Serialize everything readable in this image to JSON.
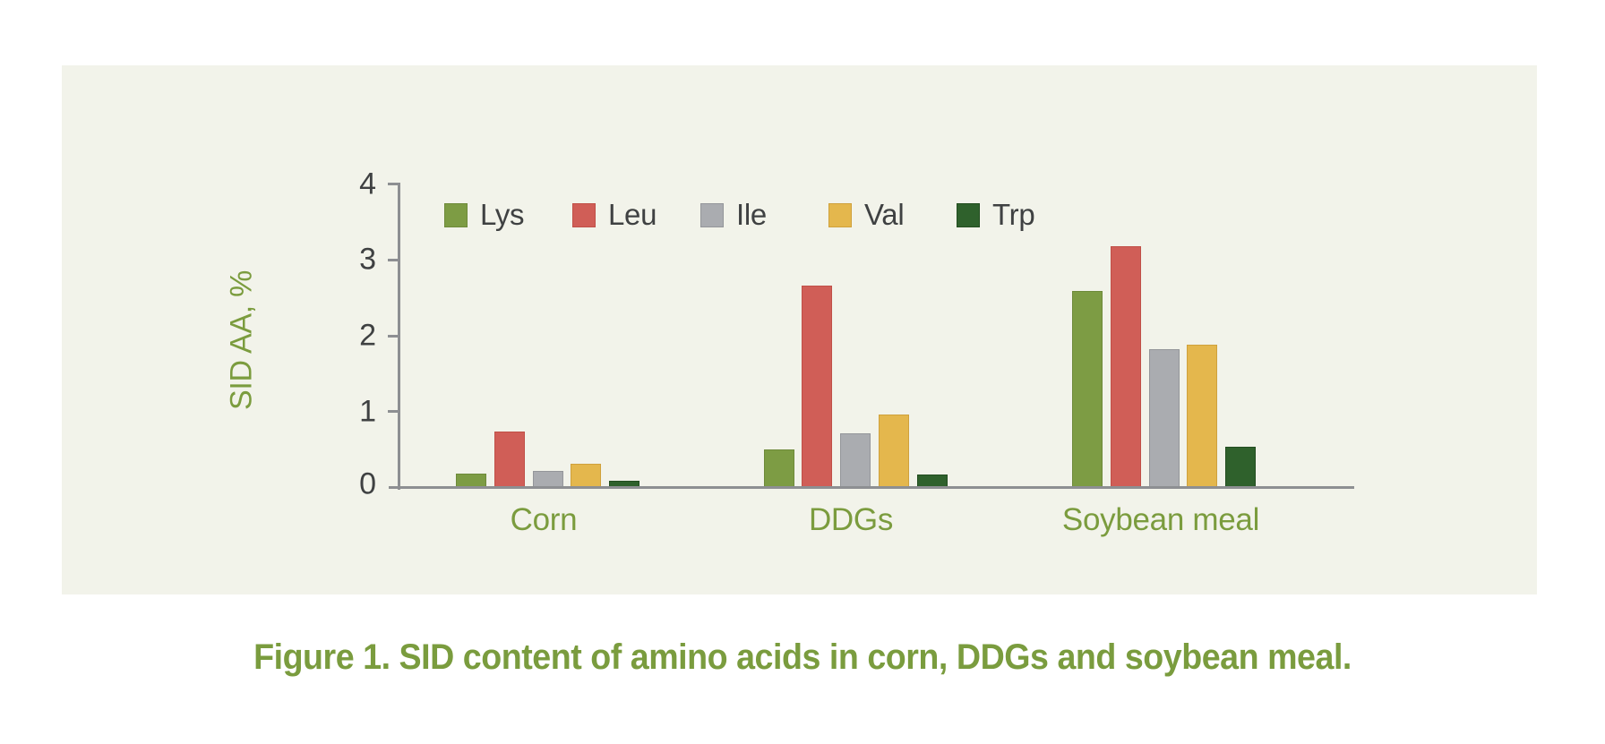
{
  "caption": "Figure 1. SID content of amino acids in corn, DDGs and soybean meal.",
  "colors": {
    "page_background": "#ffffff",
    "panel_background": "#f2f3ea",
    "axis": "#8d8f92",
    "tick_text": "#3f4142",
    "green_text": "#7b9c3e"
  },
  "chart_data": {
    "type": "bar",
    "title": "",
    "xlabel": "",
    "ylabel": "SID AA, %",
    "ylim": [
      0,
      4
    ],
    "yticks": [
      "0",
      "1",
      "2",
      "3",
      "4"
    ],
    "grid": false,
    "legend_position": "top",
    "categories": [
      "Corn",
      "DDGs",
      "Soybean meal"
    ],
    "series": [
      {
        "name": "Lys",
        "color": "#7d9c44",
        "border": "#6e8a3a",
        "values": [
          0.17,
          0.48,
          2.57
        ]
      },
      {
        "name": "Leu",
        "color": "#d05e57",
        "border": "#c05048",
        "values": [
          0.72,
          2.64,
          3.17
        ]
      },
      {
        "name": "Ile",
        "color": "#aaacb0",
        "border": "#94969a",
        "values": [
          0.2,
          0.7,
          1.81
        ]
      },
      {
        "name": "Val",
        "color": "#e4b74d",
        "border": "#cfa13c",
        "values": [
          0.3,
          0.94,
          1.87
        ]
      },
      {
        "name": "Trp",
        "color": "#2f612c",
        "border": "#234d20",
        "values": [
          0.07,
          0.15,
          0.52
        ]
      }
    ]
  }
}
